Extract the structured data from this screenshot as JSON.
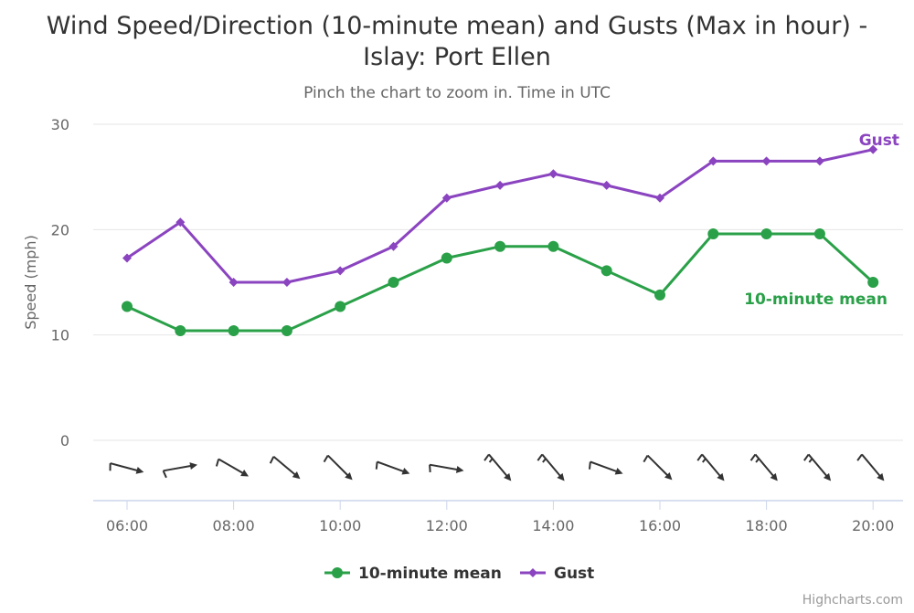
{
  "chart_data": {
    "type": "line",
    "title_line1": "Wind Speed/Direction (10-minute mean) and Gusts (Max in hour) -",
    "title_line2": "Islay: Port Ellen",
    "subtitle": "Pinch the chart to zoom in. Time in UTC",
    "ylabel": "Speed (mph)",
    "ylim": [
      0,
      30
    ],
    "yticks": [
      "0",
      "10",
      "20",
      "30"
    ],
    "xticks": [
      "06:00",
      "08:00",
      "10:00",
      "12:00",
      "14:00",
      "16:00",
      "18:00",
      "20:00"
    ],
    "x": [
      "06:00",
      "07:00",
      "08:00",
      "09:00",
      "10:00",
      "11:00",
      "12:00",
      "13:00",
      "14:00",
      "15:00",
      "16:00",
      "17:00",
      "18:00",
      "19:00",
      "20:00"
    ],
    "grid": true,
    "legend": "bottom-center",
    "series": [
      {
        "name": "10-minute mean",
        "color": "#2aa048",
        "marker": "circle",
        "values": [
          12.7,
          10.4,
          10.4,
          10.4,
          12.7,
          15.0,
          17.3,
          18.4,
          18.4,
          16.1,
          13.8,
          19.6,
          19.6,
          19.6,
          15.0
        ]
      },
      {
        "name": "Gust",
        "color": "#8b44c0",
        "marker": "diamond",
        "values": [
          17.3,
          20.7,
          15.0,
          15.0,
          16.1,
          18.4,
          23.0,
          24.2,
          25.3,
          24.2,
          23.0,
          26.5,
          26.5,
          26.5,
          27.6
        ]
      }
    ],
    "series_labels": {
      "mean": "10-minute mean",
      "gust": "Gust"
    },
    "wind_direction": {
      "description_icon": "wind-barb-icon",
      "direction_deg": [
        285,
        260,
        300,
        310,
        315,
        290,
        280,
        320,
        320,
        290,
        315,
        320,
        320,
        320,
        320
      ],
      "barbs": [
        1,
        1,
        1,
        1,
        1,
        1,
        1,
        1.5,
        1.5,
        1,
        1,
        1.5,
        1.5,
        1.5,
        1
      ]
    }
  },
  "credit": "Highcharts.com"
}
